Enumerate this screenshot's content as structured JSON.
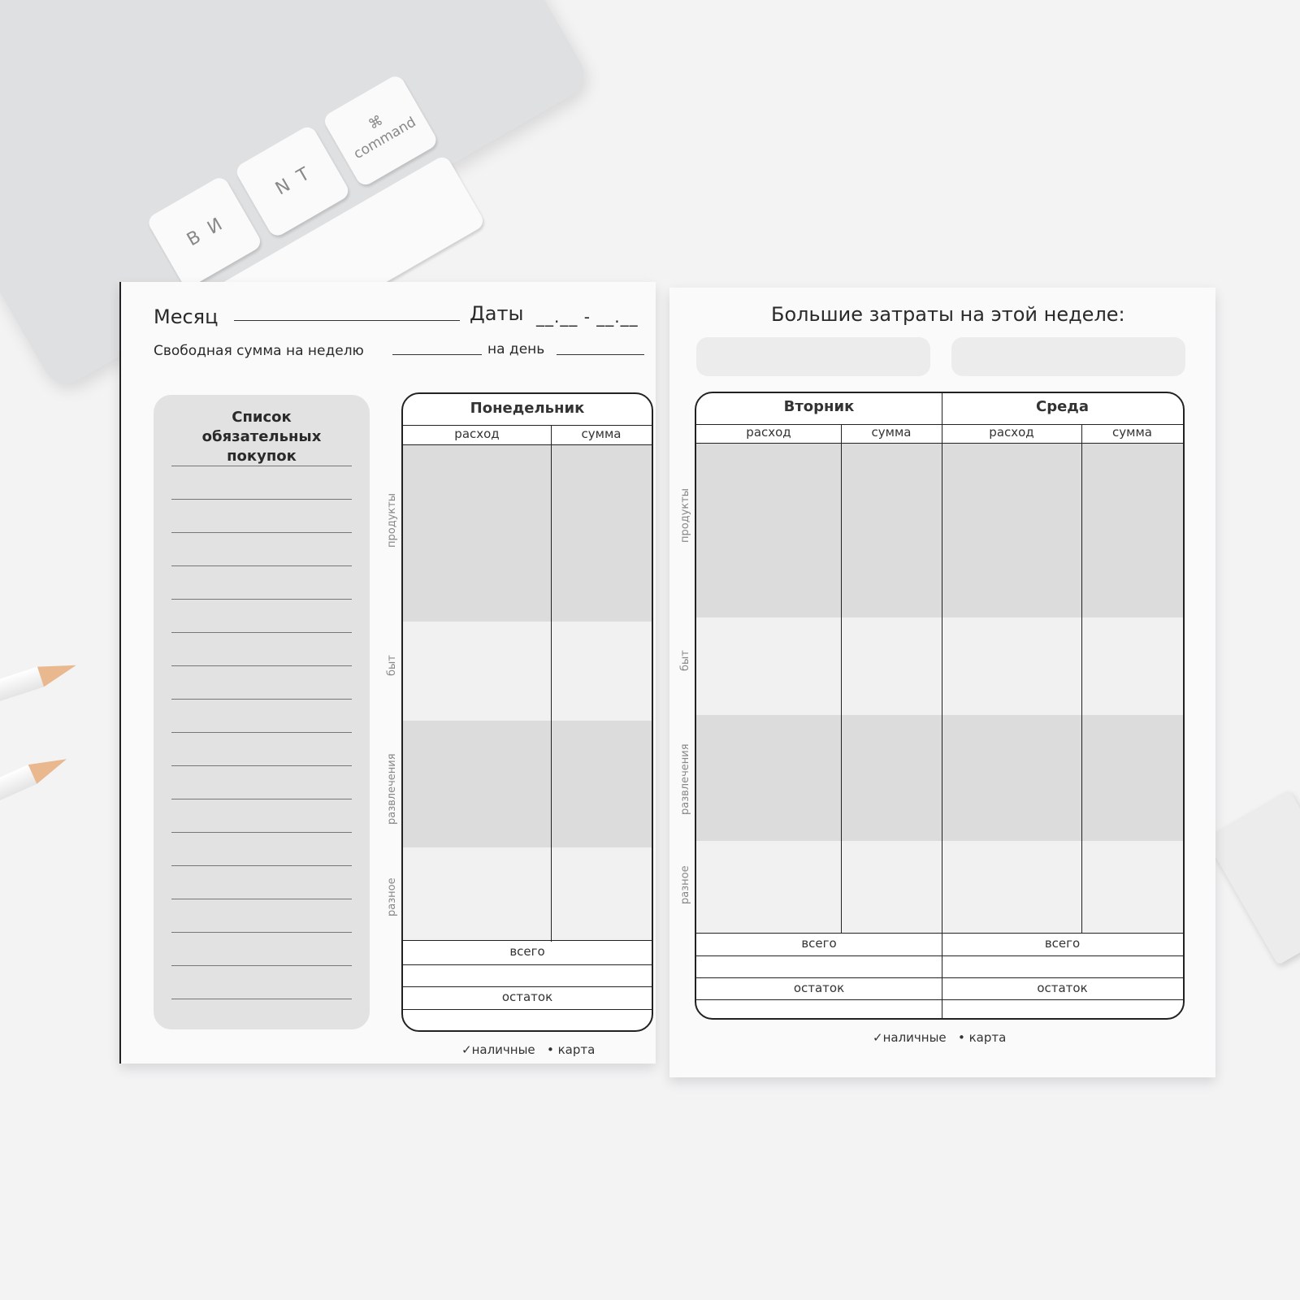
{
  "keyboard": {
    "keys": [
      {
        "label": "B",
        "alt": "И"
      },
      {
        "label": "N",
        "alt": "Т"
      },
      {
        "label": "command",
        "alt": "⌘"
      }
    ]
  },
  "left_page": {
    "month_label": "Месяц",
    "dates_label": "Даты",
    "dates_placeholder": "__.__ - __.__",
    "free_sum_label": "Свободная сумма на неделю",
    "per_day_label": "на день",
    "shopping_list": {
      "title": "Список обязательных покупок"
    },
    "day_table": {
      "day": "Понедельник",
      "col_expense": "расход",
      "col_sum": "сумма",
      "total": "всего",
      "remainder": "остаток"
    },
    "categories": [
      "продукты",
      "быт",
      "развлечения",
      "разное"
    ],
    "legend": {
      "cash": "наличные",
      "card": "карта",
      "cash_icon": "check-icon",
      "card_icon": "dot-icon"
    }
  },
  "right_page": {
    "big_expenses_title": "Большие затраты на этой неделе:",
    "days": [
      {
        "day": "Вторник",
        "col_expense": "расход",
        "col_sum": "сумма",
        "total": "всего",
        "remainder": "остаток"
      },
      {
        "day": "Среда",
        "col_expense": "расход",
        "col_sum": "сумма",
        "total": "всего",
        "remainder": "остаток"
      }
    ],
    "categories": [
      "продукты",
      "быт",
      "развлечения",
      "разное"
    ],
    "legend": {
      "cash": "наличные",
      "card": "карта"
    }
  }
}
